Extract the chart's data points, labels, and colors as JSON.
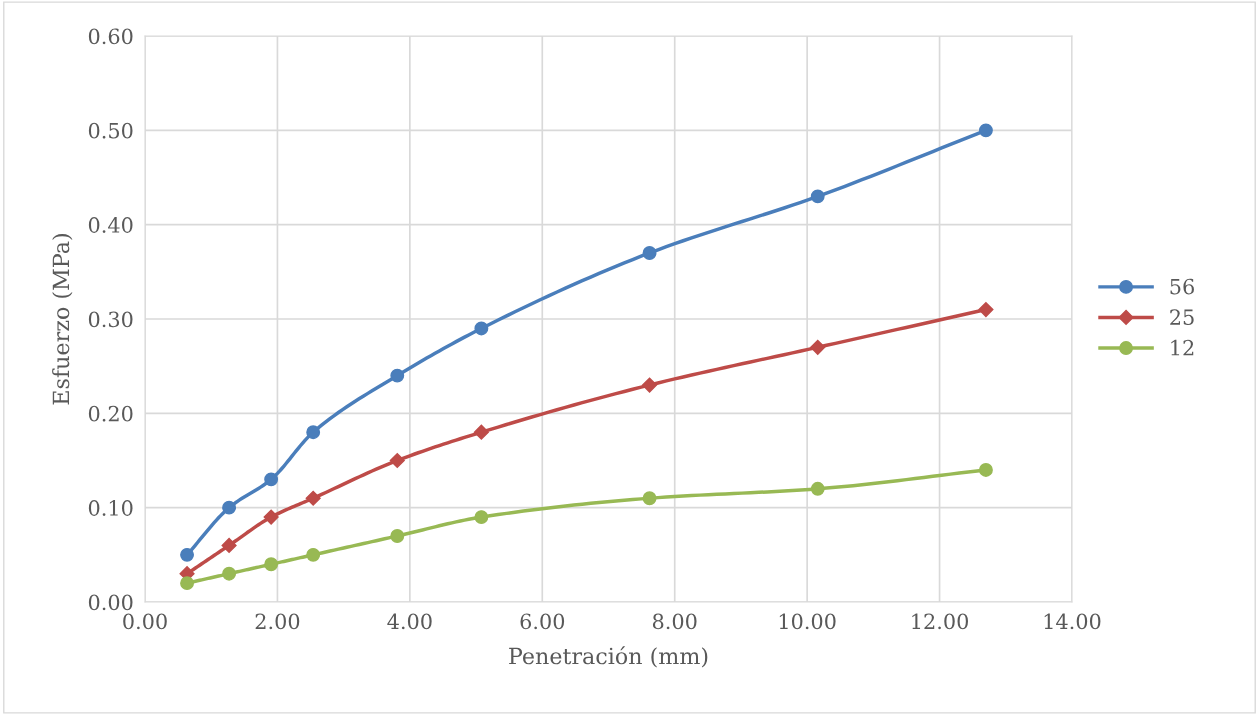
{
  "chart_data": {
    "type": "line",
    "xlabel": "Penetración (mm)",
    "ylabel": "Esfuerzo (MPa)",
    "x": [
      0.635,
      1.27,
      1.905,
      2.54,
      3.81,
      5.08,
      7.62,
      10.16,
      12.7
    ],
    "series": [
      {
        "name": "56",
        "color": "#4a7ebb",
        "marker": "circle",
        "values": [
          0.05,
          0.1,
          0.13,
          0.18,
          0.24,
          0.29,
          0.37,
          0.43,
          0.5
        ]
      },
      {
        "name": "25",
        "color": "#be4b48",
        "marker": "diamond",
        "values": [
          0.03,
          0.06,
          0.09,
          0.11,
          0.15,
          0.18,
          0.23,
          0.27,
          0.31
        ]
      },
      {
        "name": "12",
        "color": "#98b954",
        "marker": "circle",
        "values": [
          0.02,
          0.03,
          0.04,
          0.05,
          0.07,
          0.09,
          0.11,
          0.12,
          0.14
        ]
      }
    ],
    "xlim": [
      0,
      14
    ],
    "xticks": [
      {
        "value": 0,
        "label": "0.00"
      },
      {
        "value": 2,
        "label": "2.00"
      },
      {
        "value": 4,
        "label": "4.00"
      },
      {
        "value": 6,
        "label": "6.00"
      },
      {
        "value": 8,
        "label": "8.00"
      },
      {
        "value": 10,
        "label": "10.00"
      },
      {
        "value": 12,
        "label": "12.00"
      },
      {
        "value": 14,
        "label": "14.00"
      }
    ],
    "ylim": [
      0,
      0.6
    ],
    "yticks": [
      {
        "value": 0,
        "label": "0.00"
      },
      {
        "value": 0.1,
        "label": "0.10"
      },
      {
        "value": 0.2,
        "label": "0.20"
      },
      {
        "value": 0.3,
        "label": "0.30"
      },
      {
        "value": 0.4,
        "label": "0.40"
      },
      {
        "value": 0.5,
        "label": "0.50"
      },
      {
        "value": 0.6,
        "label": "0.60"
      }
    ],
    "grid": true,
    "legend": "right",
    "line_style": "solid"
  }
}
